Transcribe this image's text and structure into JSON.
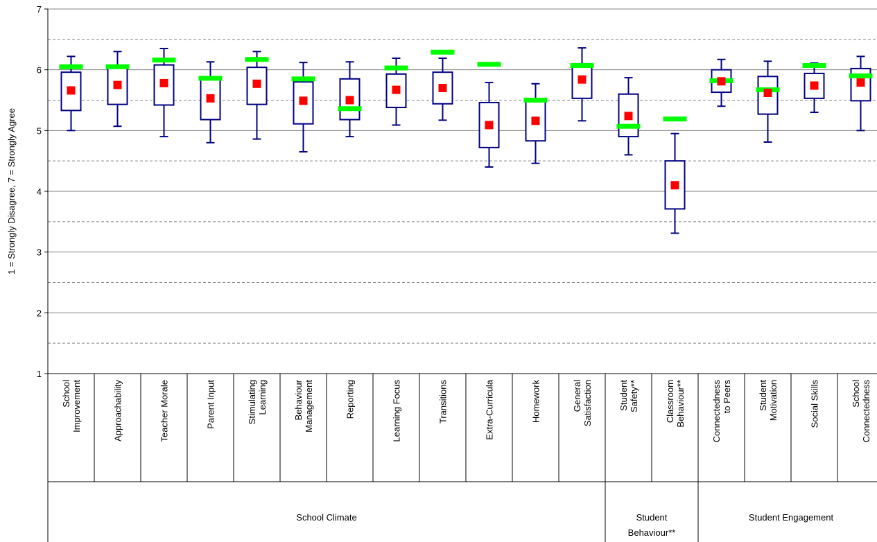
{
  "chart_data": {
    "type": "box",
    "title": "",
    "ylabel": "1 = Strongly Disagree, 7 = Strongly Agree",
    "ylim": [
      1,
      7
    ],
    "yticks": [
      1,
      2,
      3,
      4,
      5,
      6,
      7
    ],
    "minor_gridlines": [
      1.5,
      2.5,
      3.5,
      4.5,
      5.5,
      6.5
    ],
    "categories": [
      [
        "School",
        "Improvement"
      ],
      [
        "Approachability"
      ],
      [
        "Teacher Morale"
      ],
      [
        "Parent Input"
      ],
      [
        "Stimulating",
        "Learning"
      ],
      [
        "Behaviour",
        "Management"
      ],
      [
        "Reporting"
      ],
      [
        "Learning Focus"
      ],
      [
        "Transitions"
      ],
      [
        "Extra-Curricula"
      ],
      [
        "Homework"
      ],
      [
        "General",
        "Satisfaction"
      ],
      [
        "Student",
        "Safety**"
      ],
      [
        "Classroom",
        "Behaviour**"
      ],
      [
        "Connectedness",
        "to Peers"
      ],
      [
        "Student",
        "Motivation"
      ],
      [
        "Social Skills"
      ],
      [
        "School",
        "Connectedness"
      ]
    ],
    "groups": [
      {
        "label": [
          "School Climate"
        ],
        "start": 0,
        "end": 11
      },
      {
        "label": [
          "Student",
          "Behaviour**"
        ],
        "start": 12,
        "end": 13
      },
      {
        "label": [
          "Student Engagement"
        ],
        "start": 14,
        "end": 17
      }
    ],
    "boxes": [
      {
        "min": 5.0,
        "q1": 5.33,
        "q3": 5.96,
        "max": 6.22,
        "mean": 5.66,
        "school": 6.05
      },
      {
        "min": 5.07,
        "q1": 5.43,
        "q3": 6.05,
        "max": 6.3,
        "mean": 5.75,
        "school": 6.05
      },
      {
        "min": 4.9,
        "q1": 5.42,
        "q3": 6.08,
        "max": 6.35,
        "mean": 5.78,
        "school": 6.16
      },
      {
        "min": 4.8,
        "q1": 5.18,
        "q3": 5.85,
        "max": 6.13,
        "mean": 5.53,
        "school": 5.86
      },
      {
        "min": 4.86,
        "q1": 5.43,
        "q3": 6.04,
        "max": 6.3,
        "mean": 5.77,
        "school": 6.17
      },
      {
        "min": 4.65,
        "q1": 5.11,
        "q3": 5.8,
        "max": 6.12,
        "mean": 5.49,
        "school": 5.85
      },
      {
        "min": 4.9,
        "q1": 5.18,
        "q3": 5.85,
        "max": 6.13,
        "mean": 5.5,
        "school": 5.36
      },
      {
        "min": 5.09,
        "q1": 5.38,
        "q3": 5.93,
        "max": 6.19,
        "mean": 5.67,
        "school": 6.03
      },
      {
        "min": 5.17,
        "q1": 5.44,
        "q3": 5.96,
        "max": 6.19,
        "mean": 5.7,
        "school": 6.29
      },
      {
        "min": 4.4,
        "q1": 4.72,
        "q3": 5.46,
        "max": 5.79,
        "mean": 5.09,
        "school": 6.09
      },
      {
        "min": 4.46,
        "q1": 4.83,
        "q3": 5.48,
        "max": 5.77,
        "mean": 5.16,
        "school": 5.5
      },
      {
        "min": 5.16,
        "q1": 5.53,
        "q3": 6.1,
        "max": 6.36,
        "mean": 5.84,
        "school": 6.07
      },
      {
        "min": 4.6,
        "q1": 4.9,
        "q3": 5.6,
        "max": 5.87,
        "mean": 5.24,
        "school": 5.07
      },
      {
        "min": 3.31,
        "q1": 3.71,
        "q3": 4.5,
        "max": 4.95,
        "mean": 4.1,
        "school": 5.19
      },
      {
        "min": 5.4,
        "q1": 5.63,
        "q3": 6.0,
        "max": 6.17,
        "mean": 5.81,
        "school": 5.82
      },
      {
        "min": 4.81,
        "q1": 5.27,
        "q3": 5.89,
        "max": 6.14,
        "mean": 5.62,
        "school": 5.67
      },
      {
        "min": 5.3,
        "q1": 5.53,
        "q3": 5.94,
        "max": 6.11,
        "mean": 5.74,
        "school": 6.07
      },
      {
        "min": 5.0,
        "q1": 5.49,
        "q3": 6.02,
        "max": 6.22,
        "mean": 5.79,
        "school": 5.9
      }
    ],
    "colors": {
      "box": "#000080",
      "mean_marker": "#ff0000",
      "school_marker": "#00ff00",
      "gridline": "#808080",
      "axis": "#000000"
    },
    "grid": true
  }
}
